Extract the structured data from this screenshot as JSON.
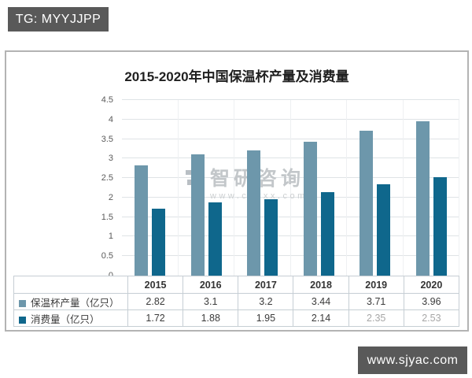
{
  "page": {
    "top_badge": "TG: MYYJJPP",
    "bottom_badge": "www.sjyac.com"
  },
  "watermark": {
    "name": "智研咨询",
    "url": "www.chyxx.com",
    "logo_color": "#b9bfc4"
  },
  "chart_data": {
    "type": "bar",
    "title": "2015-2020年中国保温杯产量及消费量",
    "categories": [
      "2015",
      "2016",
      "2017",
      "2018",
      "2019",
      "2020"
    ],
    "series": [
      {
        "name": "保温杯产量（亿只）",
        "color": "#6d97ab",
        "values": [
          2.82,
          3.1,
          3.2,
          3.44,
          3.71,
          3.96
        ]
      },
      {
        "name": "消费量（亿只）",
        "color": "#0f678c",
        "values": [
          1.72,
          1.88,
          1.95,
          2.14,
          2.35,
          2.53
        ]
      }
    ],
    "ylim": [
      0,
      4.5
    ],
    "ytick_step": 0.5,
    "grid": true,
    "legend_position": "table-left",
    "faded_cells": [
      [
        1,
        4
      ],
      [
        1,
        5
      ]
    ]
  }
}
